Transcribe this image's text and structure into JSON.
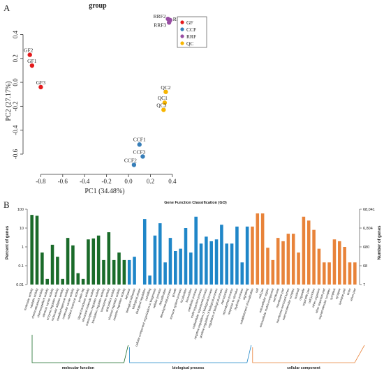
{
  "panel_a": {
    "label": "A"
  },
  "panel_b": {
    "label": "B"
  },
  "chart_data": [
    {
      "type": "scatter",
      "title": "group",
      "xlabel": "PC1 (34.48%)",
      "ylabel": "PC2 (27.17%)",
      "xlim": [
        -0.93,
        0.42
      ],
      "ylim": [
        -0.74,
        0.56
      ],
      "xticks": [
        "-0.8",
        "-0.6",
        "-0.4",
        "-0.2",
        "0.0",
        "0.2",
        "0.4"
      ],
      "yticks": [
        "-0.6",
        "-0.4",
        "-0.2",
        "0.0",
        "0.2",
        "0.4"
      ],
      "xtick_values": [
        -0.8,
        -0.6,
        -0.4,
        -0.2,
        0.0,
        0.2,
        0.4
      ],
      "ytick_values": [
        -0.6,
        -0.4,
        -0.2,
        0.0,
        0.2,
        0.4
      ],
      "legend_position": "top-right",
      "groups": [
        {
          "name": "GF",
          "color": "#e41a1c"
        },
        {
          "name": "CCF",
          "color": "#377eb8"
        },
        {
          "name": "RRF",
          "color": "#984ea3"
        },
        {
          "name": "QC",
          "color": "#f7b500"
        }
      ],
      "points": [
        {
          "label": "GF2",
          "group": "GF",
          "x": -0.9,
          "y": 0.23
        },
        {
          "label": "GF1",
          "group": "GF",
          "x": -0.88,
          "y": 0.14
        },
        {
          "label": "GF3",
          "group": "GF",
          "x": -0.8,
          "y": -0.04
        },
        {
          "label": "RRF2",
          "group": "RRF",
          "x": 0.36,
          "y": 0.53
        },
        {
          "label": "RRF1",
          "group": "RRF",
          "x": 0.38,
          "y": 0.52
        },
        {
          "label": "RRF3",
          "group": "RRF",
          "x": 0.37,
          "y": 0.5
        },
        {
          "label": "QC2",
          "group": "QC",
          "x": 0.34,
          "y": -0.08
        },
        {
          "label": "QC1",
          "group": "QC",
          "x": 0.33,
          "y": -0.17
        },
        {
          "label": "QC3",
          "group": "QC",
          "x": 0.32,
          "y": -0.23
        },
        {
          "label": "CCF1",
          "group": "CCF",
          "x": 0.1,
          "y": -0.52
        },
        {
          "label": "CCF3",
          "group": "CCF",
          "x": 0.13,
          "y": -0.62
        },
        {
          "label": "CCF2",
          "group": "CCF",
          "x": 0.05,
          "y": -0.69
        }
      ]
    },
    {
      "type": "bar",
      "title": "Gene Function Classification (GO)",
      "ylabel": "Percent of genes",
      "ylabel_right": "Number of genes",
      "yscale": "log",
      "ylim": [
        0.01,
        100
      ],
      "yticks": [
        "100",
        "10",
        "1",
        "0.1",
        "0.01"
      ],
      "ytick_values": [
        100,
        10,
        1,
        0.1,
        0.01
      ],
      "yticks_right": [
        "68,041",
        "6,804",
        "680",
        "68",
        "7"
      ],
      "series": [
        {
          "name": "molecular function",
          "color": "#1a6b2a",
          "categories": [
            "molecular activity",
            "catalytic activity",
            "chemoattractant activity",
            "chemorepellent activity",
            "electron carrier activity",
            "enzyme regulator activity",
            "molecular adaptor activity",
            "metallochaperone activity",
            "molecular carrier activity",
            "nutrient reservoir activity",
            "protein tag",
            "signal transducer activity",
            "structural molecule activity",
            "transcription regulator activity",
            "translation regulator activity",
            "transporter activity",
            "antioxidant activity",
            "channel regulator activity",
            "receptor regulator activity"
          ],
          "values": [
            50,
            45,
            0.5,
            0.02,
            1.3,
            0.3,
            0.02,
            3.0,
            1.2,
            0.04,
            0.02,
            2.5,
            2.8,
            4.0,
            0.2,
            6.0,
            0.2,
            0.5,
            0.2
          ]
        },
        {
          "name": "biological process",
          "color": "#1f86c8",
          "categories": [
            "behavior",
            "biological adhesion",
            "biological phase",
            "biological regulation",
            "cell killing",
            "cellular component organization or biogenesis",
            "cellular process",
            "detoxification",
            "developmental process",
            "growth",
            "immune system process",
            "localization",
            "locomotion",
            "metabolic process",
            "multi-organism process",
            "multicellular organismal process",
            "negative regulation of biological process",
            "positive regulation of biological process",
            "regulation of biological process",
            "reproduction",
            "reproductive process",
            "response to stimulus",
            "rhythmic process",
            "signaling"
          ],
          "values": [
            0.2,
            0.3,
            0.01,
            30,
            0.03,
            4.0,
            18,
            0.15,
            3.0,
            0.6,
            0.8,
            10,
            0.5,
            40,
            1.5,
            3.5,
            2.0,
            2.5,
            15,
            1.5,
            1.5,
            12,
            0.15,
            12
          ]
        },
        {
          "name": "cellular component",
          "color": "#e8833a",
          "categories": [
            "establishment of localization",
            "cell",
            "cell part",
            "extracellular region",
            "extracellular matrix component",
            "membrane",
            "membrane part",
            "membrane-enclosed lumen",
            "macromolecular complex",
            "nucleoid",
            "organelle",
            "organelle part",
            "cell junction",
            "other organism",
            "other organism part",
            "supramolecular complex",
            "symplast",
            "synapse",
            "synapse part",
            "virion",
            "virion part"
          ],
          "values": [
            12,
            60,
            60,
            0.9,
            0.2,
            3.0,
            2.0,
            5.0,
            5.0,
            0.5,
            40,
            25,
            8,
            0.8,
            0.15,
            0.15,
            2.5,
            2.0,
            1.0,
            0.15,
            0.15
          ]
        }
      ]
    }
  ]
}
